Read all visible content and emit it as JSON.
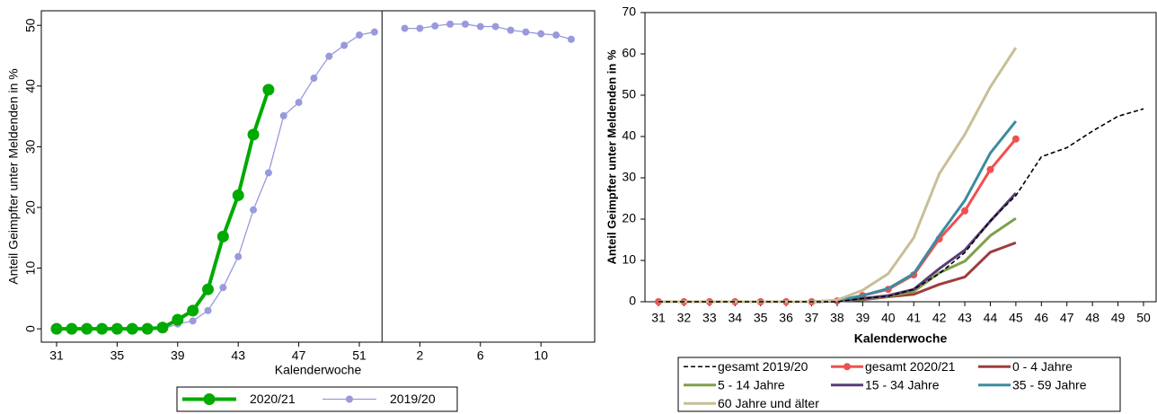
{
  "chart_data": [
    {
      "type": "line",
      "x_label": "Kalenderwoche",
      "y_label": "Anteil Geimpfter unter Meldenden in %",
      "categories": [
        "31",
        null,
        null,
        null,
        "35",
        null,
        null,
        null,
        "39",
        null,
        null,
        null,
        "43",
        null,
        null,
        null,
        "47",
        null,
        null,
        null,
        "51",
        null,
        null,
        null,
        "2",
        null,
        null,
        null,
        "6",
        null,
        null,
        null,
        "10",
        null,
        null
      ],
      "ylim": [
        -2.2,
        52.4
      ],
      "yticks": [
        0,
        10,
        20,
        30,
        40,
        50
      ],
      "y_tick_rotation": true,
      "series": [
        {
          "name": "2020/21",
          "color": "#00aa00",
          "marker": "large",
          "values": [
            0,
            0,
            0,
            0,
            0,
            0,
            0,
            0.2,
            1.5,
            3,
            6.5,
            15.2,
            22,
            32,
            39.4,
            null,
            null,
            null,
            null,
            null,
            null,
            null,
            null,
            null,
            null,
            null,
            null,
            null,
            null,
            null,
            null,
            null,
            null,
            null,
            null
          ]
        },
        {
          "name": "2019/20",
          "color": "#9999dd",
          "marker": "small",
          "values": [
            0,
            0,
            0,
            0,
            0,
            0,
            0,
            0,
            0.8,
            1.3,
            3,
            6.8,
            11.9,
            19.6,
            25.7,
            35.1,
            37.3,
            41.3,
            44.9,
            46.7,
            48.4,
            48.9,
            null,
            49.5,
            49.5,
            49.9,
            50.2,
            50.2,
            49.8,
            49.8,
            49.2,
            48.9,
            48.6,
            48.4,
            47.7
          ]
        }
      ]
    },
    {
      "type": "line",
      "x_label": "Kalenderwoche",
      "y_label": "Anteil Geimpfter unter Meldenden in %",
      "categories": [
        "31",
        "32",
        "33",
        "34",
        "35",
        "36",
        "37",
        "38",
        "39",
        "40",
        "41",
        "42",
        "43",
        "44",
        "45",
        "46",
        "47",
        "48",
        "49",
        "50"
      ],
      "ylim": [
        0,
        70
      ],
      "yticks": [
        0,
        10,
        20,
        30,
        40,
        50,
        60,
        70
      ],
      "series": [
        {
          "name": "gesamt 2019/20",
          "color": "#000000",
          "linestyle": "dashed",
          "values": [
            0,
            0,
            0,
            0,
            0,
            0,
            0,
            0,
            0.8,
            1.3,
            3,
            6.8,
            11.9,
            19.6,
            25.7,
            35.1,
            37.3,
            41.3,
            44.9,
            46.7
          ]
        },
        {
          "name": "gesamt 2020/21",
          "color": "#f05050",
          "marker": "medium",
          "values": [
            0,
            0,
            0,
            0,
            0,
            0,
            0,
            0.2,
            1.5,
            3,
            6.5,
            15.2,
            22,
            32,
            39.4,
            null,
            null,
            null,
            null,
            null
          ]
        },
        {
          "name": "0 - 4 Jahre",
          "color": "#a03c3c",
          "values": [
            0,
            0,
            0,
            0,
            0,
            0,
            0,
            0.2,
            0.5,
            1.2,
            1.8,
            4.2,
            6,
            12,
            14.3,
            null,
            null,
            null,
            null,
            null
          ]
        },
        {
          "name": "5 - 14 Jahre",
          "color": "#7fa04a",
          "values": [
            0,
            0,
            0,
            0,
            0,
            0,
            0,
            0.2,
            0.6,
            1.3,
            2.5,
            7,
            9.8,
            16,
            20.2,
            null,
            null,
            null,
            null,
            null
          ]
        },
        {
          "name": "15 - 34 Jahre",
          "color": "#5a3c78",
          "values": [
            0,
            0,
            0,
            0,
            0,
            0,
            0,
            0.2,
            0.8,
            1.5,
            3,
            8,
            12.5,
            19.5,
            26.3,
            null,
            null,
            null,
            null,
            null
          ]
        },
        {
          "name": "35 - 59 Jahre",
          "color": "#3c8ca0",
          "values": [
            0,
            0,
            0,
            0,
            0,
            0,
            0,
            0.3,
            1.5,
            3.2,
            6.8,
            16,
            24.5,
            36,
            43.7,
            null,
            null,
            null,
            null,
            null
          ]
        },
        {
          "name": "60 Jahre und älter",
          "color": "#c8bf96",
          "values": [
            0,
            0,
            0,
            0,
            0,
            0,
            0,
            0.4,
            2.8,
            6.8,
            15.5,
            31,
            40.5,
            52,
            61.5,
            null,
            null,
            null,
            null,
            null
          ]
        }
      ]
    }
  ]
}
